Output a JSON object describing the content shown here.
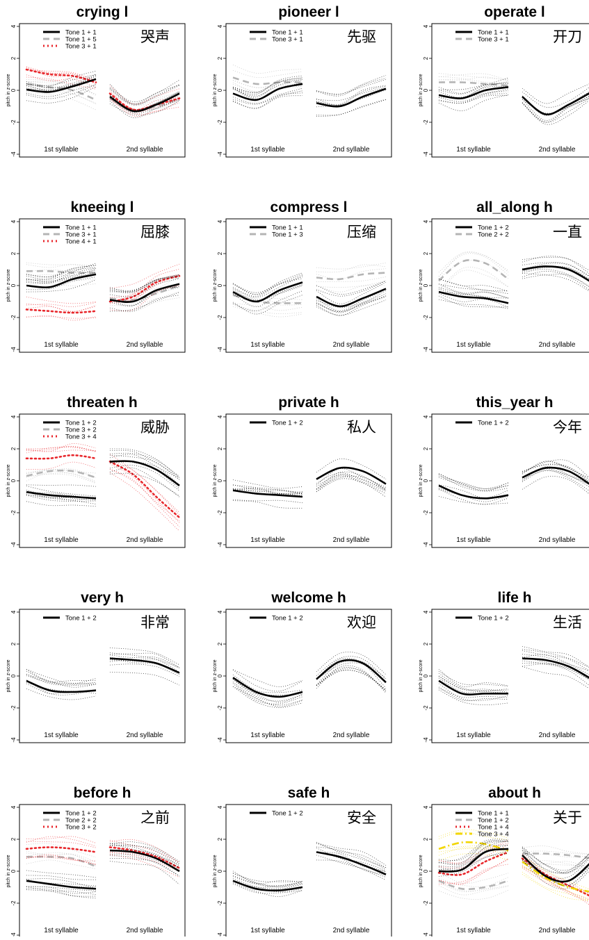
{
  "chart_data": {
    "type": "line",
    "yaxis_label": "pitch in z-score",
    "ylim": [
      -4,
      4
    ],
    "y_ticks": [
      "-4",
      "-2",
      "0",
      "2",
      "4"
    ],
    "x_labels": [
      "1st syllable",
      "2nd syllable"
    ],
    "colors": {
      "black": "#000000",
      "gray": "#b4b4b4",
      "red": "#e8262b",
      "yellow": "#f2d600"
    },
    "panels": [
      {
        "title": "crying l",
        "chinese": "哭声",
        "series": [
          {
            "name": "Tone 1 + 1",
            "style": "solid",
            "color": "#000000",
            "syl1": [
              0.05,
              -0.1,
              0.25,
              0.7
            ],
            "syl2": [
              -0.4,
              -1.3,
              -0.9,
              -0.2
            ]
          },
          {
            "name": "Tone 1 + 5",
            "style": "dashed",
            "color": "#b4b4b4",
            "syl1": [
              0.4,
              0.2,
              0.0,
              -0.6
            ],
            "syl2": [
              -0.5,
              -1.2,
              -1.0,
              -0.5
            ]
          },
          {
            "name": "Tone 3 + 1",
            "style": "dotted",
            "color": "#e8262b",
            "syl1": [
              1.3,
              1.0,
              0.9,
              0.5
            ],
            "syl2": [
              -0.2,
              -1.2,
              -0.9,
              -0.5
            ]
          }
        ]
      },
      {
        "title": "pioneer l",
        "chinese": "先驱",
        "series": [
          {
            "name": "Tone 1 + 1",
            "style": "solid",
            "color": "#000000",
            "syl1": [
              -0.2,
              -0.6,
              0.1,
              0.4
            ],
            "syl2": [
              -0.8,
              -1.0,
              -0.4,
              0.1
            ]
          },
          {
            "name": "Tone 3 + 1",
            "style": "dashed",
            "color": "#b4b4b4",
            "syl1": [
              0.8,
              0.4,
              0.5,
              0.5
            ],
            "syl2": []
          }
        ]
      },
      {
        "title": "operate l",
        "chinese": "开刀",
        "series": [
          {
            "name": "Tone 1 + 1",
            "style": "solid",
            "color": "#000000",
            "syl1": [
              -0.3,
              -0.5,
              0.0,
              0.2
            ],
            "syl2": [
              -0.4,
              -1.5,
              -0.9,
              -0.1
            ]
          },
          {
            "name": "Tone 3 + 1",
            "style": "dashed",
            "color": "#b4b4b4",
            "syl1": [
              0.5,
              0.5,
              0.4,
              0.3
            ],
            "syl2": []
          }
        ]
      },
      {
        "title": "kneeing l",
        "chinese": "屈膝",
        "series": [
          {
            "name": "Tone 1 + 1",
            "style": "solid",
            "color": "#000000",
            "syl1": [
              0.0,
              -0.1,
              0.4,
              0.7
            ],
            "syl2": [
              -0.9,
              -1.0,
              -0.3,
              0.1
            ]
          },
          {
            "name": "Tone 3 + 1",
            "style": "dashed",
            "color": "#b4b4b4",
            "syl1": [
              0.9,
              0.9,
              0.8,
              0.8
            ],
            "syl2": [
              -0.8,
              -0.9,
              -0.5,
              0.0
            ]
          },
          {
            "name": "Tone 4 + 1",
            "style": "dotted",
            "color": "#e8262b",
            "syl1": [
              -1.5,
              -1.6,
              -1.7,
              -1.6
            ],
            "syl2": [
              -1.0,
              -0.7,
              0.2,
              0.6
            ]
          }
        ]
      },
      {
        "title": "compress l",
        "chinese": "压缩",
        "series": [
          {
            "name": "Tone 1 + 1",
            "style": "solid",
            "color": "#000000",
            "syl1": [
              -0.4,
              -1.0,
              -0.3,
              0.2
            ],
            "syl2": [
              -0.7,
              -1.3,
              -0.8,
              -0.2
            ]
          },
          {
            "name": "Tone 1 + 3",
            "style": "dashed",
            "color": "#b4b4b4",
            "syl1": [
              -0.6,
              -1.0,
              -1.1,
              -1.1
            ],
            "syl2": [
              0.5,
              0.4,
              0.7,
              0.8
            ]
          }
        ]
      },
      {
        "title": "all_along h",
        "chinese": "一直",
        "series": [
          {
            "name": "Tone 1 + 2",
            "style": "solid",
            "color": "#000000",
            "syl1": [
              -0.4,
              -0.7,
              -0.8,
              -1.1
            ],
            "syl2": [
              1.0,
              1.2,
              1.0,
              0.2
            ]
          },
          {
            "name": "Tone 2 + 2",
            "style": "dashed",
            "color": "#b4b4b4",
            "syl1": [
              0.3,
              1.5,
              1.4,
              0.4
            ],
            "syl2": []
          }
        ]
      },
      {
        "title": "threaten h",
        "chinese": "威胁",
        "series": [
          {
            "name": "Tone 1 + 2",
            "style": "solid",
            "color": "#000000",
            "syl1": [
              -0.7,
              -0.9,
              -1.0,
              -1.1
            ],
            "syl2": [
              1.2,
              1.2,
              0.7,
              -0.3
            ]
          },
          {
            "name": "Tone 3 + 2",
            "style": "dashed",
            "color": "#b4b4b4",
            "syl1": [
              0.3,
              0.6,
              0.6,
              0.2
            ],
            "syl2": []
          },
          {
            "name": "Tone 3 + 4",
            "style": "dotted",
            "color": "#e8262b",
            "syl1": [
              1.4,
              1.4,
              1.6,
              1.4
            ],
            "syl2": [
              1.2,
              0.4,
              -1.0,
              -2.3
            ]
          }
        ]
      },
      {
        "title": "private h",
        "chinese": "私人",
        "series": [
          {
            "name": "Tone 1 + 2",
            "style": "solid",
            "color": "#000000",
            "syl1": [
              -0.6,
              -0.8,
              -0.9,
              -1.0
            ],
            "syl2": [
              0.1,
              0.8,
              0.6,
              -0.2
            ]
          }
        ]
      },
      {
        "title": "this_year h",
        "chinese": "今年",
        "series": [
          {
            "name": "Tone 1 + 2",
            "style": "solid",
            "color": "#000000",
            "syl1": [
              -0.3,
              -0.9,
              -1.1,
              -0.9
            ],
            "syl2": [
              0.2,
              0.8,
              0.6,
              -0.3
            ]
          }
        ]
      },
      {
        "title": "very h",
        "chinese": "非常",
        "series": [
          {
            "name": "Tone 1 + 2",
            "style": "solid",
            "color": "#000000",
            "syl1": [
              -0.3,
              -0.9,
              -1.0,
              -0.9
            ],
            "syl2": [
              1.1,
              1.0,
              0.8,
              0.2
            ]
          }
        ]
      },
      {
        "title": "welcome h",
        "chinese": "欢迎",
        "series": [
          {
            "name": "Tone 1 + 2",
            "style": "solid",
            "color": "#000000",
            "syl1": [
              -0.1,
              -1.0,
              -1.3,
              -1.0
            ],
            "syl2": [
              -0.2,
              0.9,
              0.8,
              -0.4
            ]
          }
        ]
      },
      {
        "title": "life h",
        "chinese": "生活",
        "series": [
          {
            "name": "Tone 1 + 2",
            "style": "solid",
            "color": "#000000",
            "syl1": [
              -0.3,
              -1.1,
              -1.1,
              -1.1
            ],
            "syl2": [
              1.1,
              1.0,
              0.6,
              -0.2
            ]
          }
        ]
      },
      {
        "title": "before h",
        "chinese": "之前",
        "series": [
          {
            "name": "Tone 1 + 2",
            "style": "solid",
            "color": "#000000",
            "syl1": [
              -0.6,
              -0.8,
              -1.0,
              -1.1
            ],
            "syl2": [
              1.3,
              1.2,
              0.8,
              0.0
            ]
          },
          {
            "name": "Tone 2 + 2",
            "style": "dashed",
            "color": "#b4b4b4",
            "syl1": [
              0.9,
              0.9,
              0.8,
              0.3
            ],
            "syl2": []
          },
          {
            "name": "Tone 3 + 2",
            "style": "dotted",
            "color": "#e8262b",
            "syl1": [
              1.4,
              1.5,
              1.4,
              1.2
            ],
            "syl2": [
              1.5,
              1.3,
              0.9,
              0.2
            ]
          }
        ]
      },
      {
        "title": "safe h",
        "chinese": "安全",
        "series": [
          {
            "name": "Tone 1 + 2",
            "style": "solid",
            "color": "#000000",
            "syl1": [
              -0.6,
              -1.1,
              -1.2,
              -1.0
            ],
            "syl2": [
              1.2,
              0.9,
              0.4,
              -0.2
            ]
          }
        ]
      },
      {
        "title": "about h",
        "chinese": "关于",
        "series": [
          {
            "name": "Tone 1 + 1",
            "style": "solid",
            "color": "#000000",
            "syl1": [
              0.0,
              0.1,
              1.2,
              1.4
            ],
            "syl2": [
              1.0,
              -0.3,
              -0.6,
              0.6
            ]
          },
          {
            "name": "Tone 1 + 2",
            "style": "dashed",
            "color": "#b4b4b4",
            "syl1": [
              -0.6,
              -1.1,
              -1.0,
              -0.6
            ],
            "syl2": [
              1.1,
              1.1,
              1.0,
              0.8
            ]
          },
          {
            "name": "Tone 1 + 4",
            "style": "dotted",
            "color": "#e8262b",
            "syl1": [
              -0.1,
              -0.2,
              0.6,
              1.2
            ],
            "syl2": [
              0.8,
              -0.2,
              -0.9,
              -1.6
            ]
          },
          {
            "name": "Tone 3 + 4",
            "style": "dashdot",
            "color": "#f2d600",
            "syl1": [
              1.4,
              1.8,
              1.7,
              1.3
            ],
            "syl2": [
              0.6,
              -0.4,
              -1.0,
              -1.3
            ]
          }
        ]
      }
    ]
  }
}
